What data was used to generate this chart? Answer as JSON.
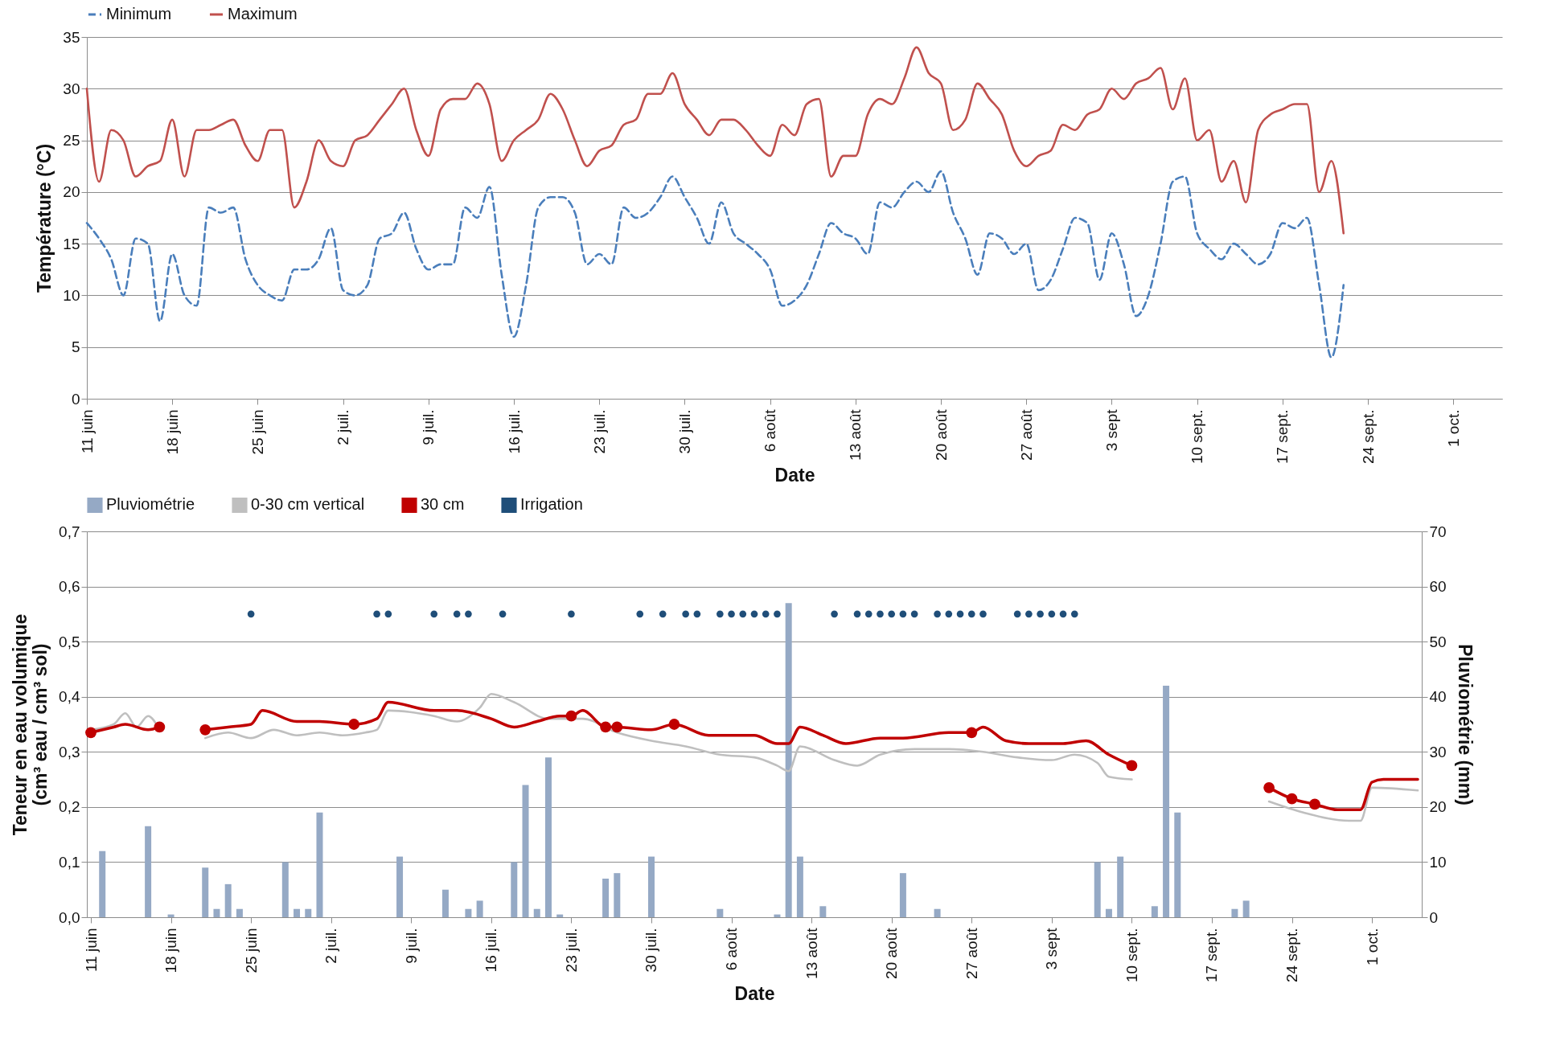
{
  "chart_data": [
    {
      "type": "line",
      "xlabel": "Date",
      "ylabel": "Température (°C)",
      "grid": "y",
      "legend": "top",
      "xlim": [
        "--06-11",
        "--10-05"
      ],
      "xticks": [
        {
          "value": "--06-11",
          "label": "11 juin"
        },
        {
          "value": "--06-18",
          "label": "18 juin"
        },
        {
          "value": "--06-25",
          "label": "25 juin"
        },
        {
          "value": "--07-02",
          "label": "2 juil."
        },
        {
          "value": "--07-09",
          "label": "9 juil."
        },
        {
          "value": "--07-16",
          "label": "16 juil."
        },
        {
          "value": "--07-23",
          "label": "23 juil."
        },
        {
          "value": "--07-30",
          "label": "30 juil."
        },
        {
          "value": "--08-06",
          "label": "6 août"
        },
        {
          "value": "--08-13",
          "label": "13 août"
        },
        {
          "value": "--08-20",
          "label": "20 août"
        },
        {
          "value": "--08-27",
          "label": "27 août"
        },
        {
          "value": "--09-03",
          "label": "3 sept"
        },
        {
          "value": "--09-10",
          "label": "10 sept."
        },
        {
          "value": "--09-17",
          "label": "17 sept."
        },
        {
          "value": "--09-24",
          "label": "24 sept."
        },
        {
          "value": "--10-01",
          "label": "1 oct."
        }
      ],
      "ylim": [
        0,
        35
      ],
      "yticks": [
        0,
        5,
        10,
        15,
        20,
        25,
        30,
        35
      ],
      "x": [
        "--06-11",
        "--06-12",
        "--06-13",
        "--06-14",
        "--06-15",
        "--06-16",
        "--06-17",
        "--06-18",
        "--06-19",
        "--06-20",
        "--06-21",
        "--06-22",
        "--06-23",
        "--06-24",
        "--06-25",
        "--06-26",
        "--06-27",
        "--06-28",
        "--06-29",
        "--06-30",
        "--07-01",
        "--07-02",
        "--07-03",
        "--07-04",
        "--07-05",
        "--07-06",
        "--07-07",
        "--07-08",
        "--07-09",
        "--07-10",
        "--07-11",
        "--07-12",
        "--07-13",
        "--07-14",
        "--07-15",
        "--07-16",
        "--07-17",
        "--07-18",
        "--07-19",
        "--07-20",
        "--07-21",
        "--07-22",
        "--07-23",
        "--07-24",
        "--07-25",
        "--07-26",
        "--07-27",
        "--07-28",
        "--07-29",
        "--07-30",
        "--07-31",
        "--08-01",
        "--08-02",
        "--08-03",
        "--08-04",
        "--08-05",
        "--08-06",
        "--08-07",
        "--08-08",
        "--08-09",
        "--08-10",
        "--08-11",
        "--08-12",
        "--08-13",
        "--08-14",
        "--08-15",
        "--08-16",
        "--08-17",
        "--08-18",
        "--08-19",
        "--08-20",
        "--08-21",
        "--08-22",
        "--08-23",
        "--08-24",
        "--08-25",
        "--08-26",
        "--08-27",
        "--08-28",
        "--08-29",
        "--08-30",
        "--08-31",
        "--09-01",
        "--09-02",
        "--09-03",
        "--09-04",
        "--09-05",
        "--09-06",
        "--09-07",
        "--09-08",
        "--09-09",
        "--09-10",
        "--09-11",
        "--09-12",
        "--09-13",
        "--09-14",
        "--09-15",
        "--09-16",
        "--09-17",
        "--09-18",
        "--09-19",
        "--09-20",
        "--09-21",
        "--09-22"
      ],
      "series": [
        {
          "name": "Minimum",
          "color": "#4a7ebb",
          "line_style": "dashed",
          "values": [
            17,
            15.5,
            13.5,
            10,
            15.5,
            15,
            7.5,
            14,
            10,
            9,
            18.5,
            18,
            18.5,
            13.5,
            11,
            10,
            9.5,
            12.5,
            12.5,
            13.5,
            16.5,
            10.5,
            10,
            11,
            15.5,
            16,
            18,
            14.5,
            12.5,
            13,
            13,
            18.5,
            17.5,
            20.5,
            12,
            6,
            11,
            18.5,
            19.5,
            19.5,
            18,
            13,
            14,
            13,
            18.5,
            17.5,
            18,
            19.5,
            21.5,
            19.5,
            17.5,
            15,
            19,
            16,
            15,
            14,
            12.5,
            9,
            9.5,
            11,
            14,
            17,
            16,
            15.5,
            14,
            19,
            18.5,
            20,
            21,
            20,
            22,
            18,
            15.5,
            12,
            16,
            15.5,
            14,
            15,
            10.5,
            11.5,
            14.5,
            17.5,
            17,
            11.5,
            16,
            13,
            8,
            10,
            15,
            21,
            21.5,
            16,
            14.5,
            13.5,
            15,
            14,
            13,
            14,
            17,
            16.5,
            17.5,
            11,
            4,
            11
          ]
        },
        {
          "name": "Maximum",
          "color": "#c0504d",
          "line_style": "solid",
          "values": [
            30,
            21,
            26,
            25,
            21.5,
            22.5,
            23,
            27,
            21.5,
            26,
            26,
            26.5,
            27,
            24.5,
            23,
            26,
            26,
            18.5,
            21,
            25,
            23,
            22.5,
            25,
            25.5,
            27,
            28.5,
            30,
            26,
            23.5,
            28,
            29,
            29,
            30.5,
            28.5,
            23,
            25,
            26,
            27,
            29.5,
            28,
            25,
            22.5,
            24,
            24.5,
            26.5,
            27,
            29.5,
            29.5,
            31.5,
            28.5,
            27,
            25.5,
            27,
            27,
            26,
            24.5,
            23.5,
            26.5,
            25.5,
            28.5,
            29,
            21.5,
            23.5,
            23.5,
            27.5,
            29,
            28.5,
            31,
            34,
            31.5,
            30.5,
            26,
            27,
            30.5,
            29,
            27.5,
            24,
            22.5,
            23.5,
            24,
            26.5,
            26,
            27.5,
            28,
            30,
            29,
            30.5,
            31,
            32,
            28,
            31,
            25,
            26,
            21,
            23,
            19,
            26,
            27.5,
            28,
            28.5,
            28.5,
            20,
            23,
            16
          ]
        }
      ]
    },
    {
      "type": "line",
      "xlabel": "Date",
      "ylabel": "Teneur en eau volumique\n(cm³ eau / cm³ sol)",
      "y2label": "Pluviométrie (mm)",
      "grid": "y",
      "legend": "top",
      "xlim": [
        "--06-11",
        "--10-05"
      ],
      "xticks": [
        {
          "value": "--06-11",
          "label": "11 juin"
        },
        {
          "value": "--06-18",
          "label": "18 juin"
        },
        {
          "value": "--06-25",
          "label": "25 juin"
        },
        {
          "value": "--07-02",
          "label": "2 juil."
        },
        {
          "value": "--07-09",
          "label": "9 juil."
        },
        {
          "value": "--07-16",
          "label": "16 juil."
        },
        {
          "value": "--07-23",
          "label": "23 juil."
        },
        {
          "value": "--07-30",
          "label": "30 juil."
        },
        {
          "value": "--08-06",
          "label": "6 août"
        },
        {
          "value": "--08-13",
          "label": "13 août"
        },
        {
          "value": "--08-20",
          "label": "20 août"
        },
        {
          "value": "--08-27",
          "label": "27 août"
        },
        {
          "value": "--09-03",
          "label": "3 sept"
        },
        {
          "value": "--09-10",
          "label": "10 sept."
        },
        {
          "value": "--09-17",
          "label": "17 sept."
        },
        {
          "value": "--09-24",
          "label": "24 sept."
        },
        {
          "value": "--10-01",
          "label": "1 oct."
        }
      ],
      "ylim": [
        0,
        0.7
      ],
      "yticks": [
        {
          "value": 0,
          "label": "0,0"
        },
        {
          "value": 0.1,
          "label": "0,1"
        },
        {
          "value": 0.2,
          "label": "0,2"
        },
        {
          "value": 0.3,
          "label": "0,3"
        },
        {
          "value": 0.4,
          "label": "0,4"
        },
        {
          "value": 0.5,
          "label": "0,5"
        },
        {
          "value": 0.6,
          "label": "0,6"
        },
        {
          "value": 0.7,
          "label": "0,7"
        }
      ],
      "y2lim": [
        0,
        70
      ],
      "y2ticks": [
        0,
        10,
        20,
        30,
        40,
        50,
        60,
        70
      ],
      "series": [
        {
          "name": "Pluviométrie",
          "type": "bar",
          "axis": "y2",
          "color": "#95a9c5",
          "x": [
            "--06-12",
            "--06-16",
            "--06-18",
            "--06-21",
            "--06-22",
            "--06-23",
            "--06-24",
            "--06-28",
            "--06-29",
            "--06-30",
            "--07-01",
            "--07-08",
            "--07-12",
            "--07-14",
            "--07-15",
            "--07-18",
            "--07-19",
            "--07-20",
            "--07-21",
            "--07-22",
            "--07-26",
            "--07-27",
            "--07-30",
            "--08-05",
            "--08-10",
            "--08-11",
            "--08-12",
            "--08-14",
            "--08-21",
            "--08-24",
            "--09-07",
            "--09-08",
            "--09-09",
            "--09-12",
            "--09-13",
            "--09-14",
            "--09-19",
            "--09-20"
          ],
          "values": [
            12,
            16.5,
            0.5,
            9,
            1.5,
            6,
            1.5,
            10,
            1.5,
            1.5,
            19,
            11,
            5,
            1.5,
            3,
            10,
            24,
            1.5,
            29,
            0.5,
            7,
            8,
            11,
            1.5,
            0.5,
            57,
            11,
            2,
            8,
            1.5,
            10,
            1.5,
            11,
            2,
            42,
            19,
            1.5,
            3
          ]
        },
        {
          "name": "0-30 cm vertical",
          "color": "#bfbfbf",
          "x": [
            "--06-11",
            "--06-13",
            "--06-14",
            "--06-15",
            "--06-16",
            "--06-17",
            "--06-19",
            "--06-21",
            "--06-23",
            "--06-25",
            "--06-27",
            "--06-29",
            "--07-01",
            "--07-03",
            "--07-05",
            "--07-06",
            "--07-07",
            "--07-11",
            "--07-13",
            "--07-15",
            "--07-16",
            "--07-18",
            "--07-21",
            "--07-24",
            "--07-27",
            "--07-30",
            "--08-02",
            "--08-05",
            "--08-08",
            "--08-10",
            "--08-11",
            "--08-12",
            "--08-15",
            "--08-17",
            "--08-19",
            "--08-22",
            "--08-25",
            "--08-28",
            "--08-31",
            "--09-03",
            "--09-05",
            "--09-07",
            "--09-08",
            "--09-10",
            "--09-16",
            "--09-22",
            "--09-25",
            "--09-29",
            "--09-30",
            "--10-01",
            "--10-05"
          ],
          "values": [
            0.34,
            0.35,
            0.37,
            0.345,
            0.365,
            0.34,
            null,
            0.325,
            0.335,
            0.325,
            0.34,
            0.33,
            0.335,
            0.33,
            0.335,
            0.34,
            0.375,
            0.365,
            0.355,
            0.38,
            0.405,
            0.39,
            0.36,
            0.36,
            0.335,
            0.32,
            0.31,
            0.295,
            0.29,
            0.275,
            0.265,
            0.31,
            0.285,
            0.275,
            0.295,
            0.305,
            0.305,
            0.3,
            0.29,
            0.285,
            0.295,
            0.28,
            0.255,
            0.25,
            null,
            0.21,
            0.19,
            0.175,
            0.175,
            0.235,
            0.23
          ]
        },
        {
          "name": "30 cm",
          "color": "#c00000",
          "x": [
            "--06-11",
            "--06-13",
            "--06-14",
            "--06-16",
            "--06-17",
            "--06-19",
            "--06-21",
            "--06-23",
            "--06-25",
            "--06-26",
            "--06-29",
            "--07-01",
            "--07-04",
            "--07-06",
            "--07-07",
            "--07-11",
            "--07-13",
            "--07-16",
            "--07-18",
            "--07-20",
            "--07-22",
            "--07-23",
            "--07-24",
            "--07-26",
            "--07-27",
            "--07-30",
            "--08-01",
            "--08-04",
            "--08-08",
            "--08-10",
            "--08-11",
            "--08-12",
            "--08-14",
            "--08-16",
            "--08-19",
            "--08-21",
            "--08-25",
            "--08-27",
            "--08-28",
            "--08-30",
            "--09-01",
            "--09-04",
            "--09-06",
            "--09-08",
            "--09-10",
            "--09-16",
            "--09-22",
            "--09-24",
            "--09-26",
            "--09-28",
            "--09-30",
            "--10-01",
            "--10-02",
            "--10-05"
          ],
          "values": [
            0.335,
            0.345,
            0.35,
            0.34,
            0.345,
            null,
            0.34,
            0.345,
            0.35,
            0.375,
            0.355,
            0.355,
            0.35,
            0.36,
            0.39,
            0.375,
            0.375,
            0.36,
            0.345,
            0.355,
            0.365,
            0.365,
            0.375,
            0.345,
            0.345,
            0.34,
            0.35,
            0.33,
            0.33,
            0.315,
            0.315,
            0.345,
            0.33,
            0.315,
            0.325,
            0.325,
            0.335,
            0.335,
            0.345,
            0.32,
            0.315,
            0.315,
            0.32,
            0.295,
            0.275,
            null,
            0.235,
            0.215,
            0.205,
            0.195,
            0.195,
            0.245,
            0.25,
            0.25
          ]
        },
        {
          "type": "scatter",
          "marker": "circle",
          "color": "#c00000",
          "x": [
            "--06-11",
            "--06-17",
            "--06-21",
            "--07-04",
            "--07-23",
            "--07-26",
            "--07-27",
            "--08-01",
            "--08-27",
            "--09-10",
            "--09-22",
            "--09-24",
            "--09-26"
          ],
          "values": [
            0.335,
            0.345,
            0.34,
            0.35,
            0.365,
            0.345,
            0.345,
            0.35,
            0.335,
            0.275,
            0.235,
            0.215,
            0.205
          ]
        },
        {
          "name": "Irrigation",
          "type": "scatter",
          "marker": "circle",
          "color": "#1f4e79",
          "x": [
            "--06-25",
            "--07-06",
            "--07-07",
            "--07-11",
            "--07-13",
            "--07-14",
            "--07-17",
            "--07-23",
            "--07-29",
            "--07-31",
            "--08-02",
            "--08-03",
            "--08-05",
            "--08-06",
            "--08-07",
            "--08-08",
            "--08-09",
            "--08-10",
            "--08-15",
            "--08-17",
            "--08-18",
            "--08-19",
            "--08-20",
            "--08-21",
            "--08-22",
            "--08-24",
            "--08-25",
            "--08-26",
            "--08-27",
            "--08-28",
            "--08-31",
            "--09-01",
            "--09-02",
            "--09-03",
            "--09-04",
            "--09-05"
          ],
          "values": [
            0.55,
            0.55,
            0.55,
            0.55,
            0.55,
            0.55,
            0.55,
            0.55,
            0.55,
            0.55,
            0.55,
            0.55,
            0.55,
            0.55,
            0.55,
            0.55,
            0.55,
            0.55,
            0.55,
            0.55,
            0.55,
            0.55,
            0.55,
            0.55,
            0.55,
            0.55,
            0.55,
            0.55,
            0.55,
            0.55,
            0.55,
            0.55,
            0.55,
            0.55,
            0.55,
            0.55
          ]
        }
      ]
    }
  ]
}
